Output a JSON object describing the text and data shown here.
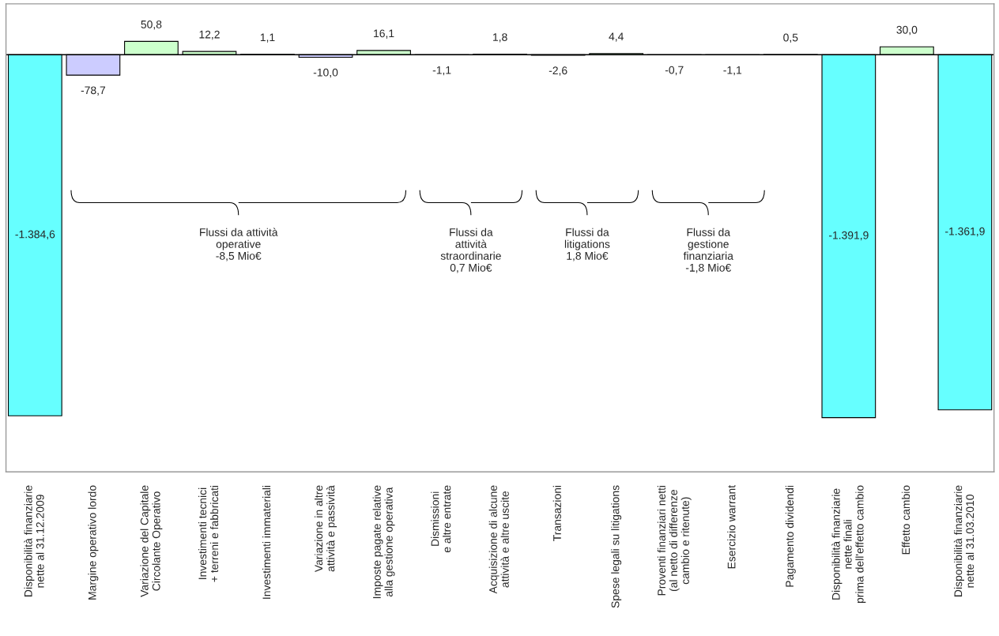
{
  "chart_data": {
    "type": "bar",
    "categories": [
      "Disponibilità finanziarie\nnette al 31.12.2009",
      "Margine operativo lordo",
      "Variazione del Capitale\nCircolante Operativo",
      "Investimenti tecnici\n+ terreni e fabbricati",
      "Investimenti immateriali",
      "Variazione in altre\nattività e passività",
      "Imposte pagate relative\nalla gestione operativa",
      "Dismissioni\ne altre entrate",
      "Acquisizione di alcune\nattività e altre uscite",
      "Transazioni",
      "Spese legali su litigations",
      "Proventi finanziari netti\n(al netto di differenze\ncambio e ritenute)",
      "Esercizio warrant",
      "Pagamento dividendi",
      "Disponibilità finanziarie\nnette finali\nprima dell'effetto cambio",
      "Effetto cambio",
      "Disponibilità finanziarie\nnette al 31.03.2010"
    ],
    "values": [
      -1384.6,
      -78.7,
      50.8,
      12.2,
      1.1,
      -10.0,
      16.1,
      -1.1,
      1.8,
      -2.6,
      4.4,
      -0.7,
      -1.1,
      0.5,
      -1391.9,
      30.0,
      -1361.9
    ],
    "value_labels": [
      "-1.384,6",
      "-78,7",
      "50,8",
      "12,2",
      "1,1",
      "-10,0",
      "16,1",
      "-1,1",
      "1,8",
      "-2,6",
      "4,4",
      "-0,7",
      "-1,1",
      "0,5",
      "-1.391,9",
      "30,0",
      "-1.361,9"
    ],
    "colors": [
      "#66ffff",
      "#ccccff",
      "#ccffcc",
      "#ccffcc",
      "#ccffcc",
      "#ccccff",
      "#ccffcc",
      "#ccccff",
      "#ccffcc",
      "#ccccff",
      "#ccffcc",
      "#ccccff",
      "#ccccff",
      "#ccffcc",
      "#66ffff",
      "#ccffcc",
      "#66ffff"
    ],
    "ylim": [
      -1600,
      195
    ],
    "tick_labels": "x",
    "grid": false,
    "legend": false,
    "ref_lines": [
      {
        "axis": "y",
        "value": 0,
        "color": "#000000"
      }
    ],
    "annotations": [
      "Flussi da attività\noperative\n-8,5 Mio€",
      "Flussi da\nattività\nstraordinarie\n0,7 Mio€",
      "Flussi da\nlitigations\n1,8 Mio€",
      "Flussi da\ngestione\nfinanziaria\n-1,8 Mio€"
    ]
  }
}
